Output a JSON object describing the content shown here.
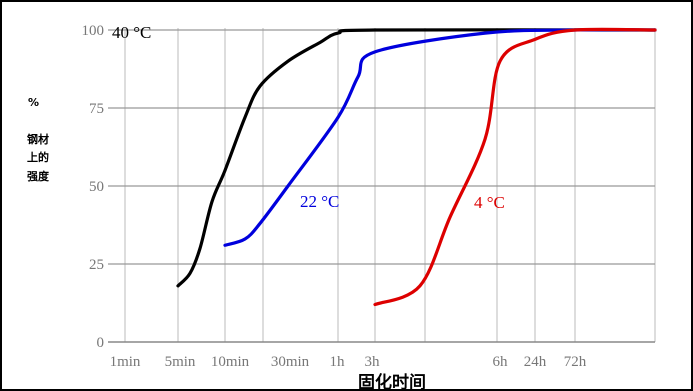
{
  "chart_data": {
    "type": "line",
    "title": "",
    "xlabel": "固化时间",
    "ylabel_lines": [
      "%",
      "钢材",
      "上的",
      "强度"
    ],
    "x_ticks": [
      "1min",
      "5min",
      "10min",
      "30min",
      "1h",
      "3h",
      "6h",
      "24h",
      "72h"
    ],
    "y_ticks": [
      0,
      25,
      50,
      75,
      100
    ],
    "ylim": [
      0,
      100
    ],
    "grid": true,
    "series": [
      {
        "name": "40 °C",
        "color": "#000000",
        "points": [
          [
            "5min",
            18
          ],
          [
            "6min",
            22
          ],
          [
            "7min",
            30
          ],
          [
            "9min",
            45
          ],
          [
            "10min",
            55
          ],
          [
            "15min",
            72
          ],
          [
            "20min",
            82
          ],
          [
            "30min",
            90
          ],
          [
            "45min",
            96
          ],
          [
            "1h",
            99
          ],
          [
            "3h",
            100
          ],
          [
            "72h",
            100
          ]
        ]
      },
      {
        "name": "22 °C",
        "color": "#0000dd",
        "points": [
          [
            "10min",
            31
          ],
          [
            "15min",
            33
          ],
          [
            "20min",
            38
          ],
          [
            "30min",
            50
          ],
          [
            "1h",
            72
          ],
          [
            "2h",
            85
          ],
          [
            "3h",
            93
          ],
          [
            "6h",
            99
          ],
          [
            "24h",
            100
          ],
          [
            "72h",
            100
          ]
        ]
      },
      {
        "name": "4 °C",
        "color": "#dd0000",
        "points": [
          [
            "3h",
            12
          ],
          [
            "4h",
            18
          ],
          [
            "5h",
            40
          ],
          [
            "6h",
            65
          ],
          [
            "8h",
            90
          ],
          [
            "12h",
            97
          ],
          [
            "24h",
            100
          ],
          [
            "72h",
            100
          ]
        ]
      }
    ]
  }
}
